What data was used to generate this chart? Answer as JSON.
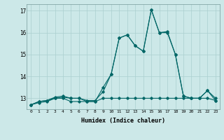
{
  "title": "",
  "xlabel": "Humidex (Indice chaleur)",
  "ylabel": "",
  "background_color": "#cce8e8",
  "grid_color": "#aacfcf",
  "line_color": "#006666",
  "xlim": [
    -0.5,
    23.5
  ],
  "ylim": [
    12.5,
    17.3
  ],
  "yticks": [
    13,
    14,
    15,
    16,
    17
  ],
  "xticks": [
    0,
    1,
    2,
    3,
    4,
    5,
    6,
    7,
    8,
    9,
    10,
    11,
    12,
    13,
    14,
    15,
    16,
    17,
    18,
    19,
    20,
    21,
    22,
    23
  ],
  "series1": [
    12.7,
    12.8,
    12.85,
    13.0,
    13.0,
    12.85,
    12.85,
    12.85,
    12.85,
    13.0,
    13.0,
    13.0,
    13.0,
    13.0,
    13.0,
    13.0,
    13.0,
    13.0,
    13.0,
    13.0,
    13.0,
    13.0,
    13.0,
    12.9
  ],
  "series2": [
    12.7,
    12.85,
    12.9,
    13.0,
    13.05,
    13.0,
    13.0,
    12.85,
    12.85,
    13.5,
    14.1,
    15.75,
    15.9,
    15.4,
    15.15,
    17.05,
    16.0,
    16.0,
    15.0,
    13.1,
    13.0,
    13.0,
    13.35,
    13.0
  ],
  "series3": [
    12.7,
    12.85,
    12.9,
    13.05,
    13.1,
    13.0,
    13.0,
    12.9,
    12.9,
    13.3,
    14.1,
    15.75,
    15.9,
    15.4,
    15.15,
    17.05,
    16.0,
    16.05,
    15.0,
    13.1,
    13.0,
    13.0,
    13.35,
    12.9
  ]
}
